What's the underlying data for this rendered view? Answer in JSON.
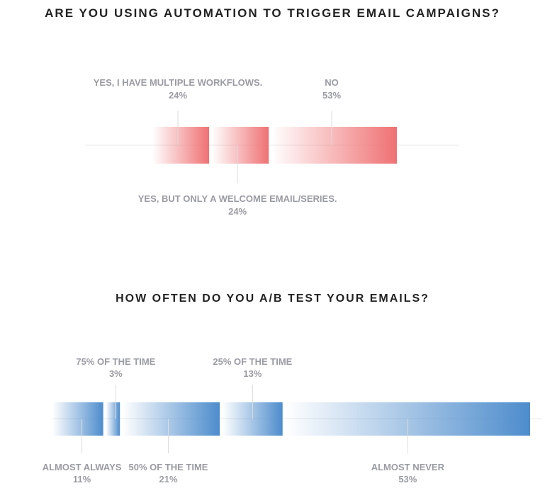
{
  "chart_data": [
    {
      "type": "bar",
      "title": "ARE YOU USING AUTOMATION TO TRIGGER EMAIL CAMPAIGNS?",
      "color": "#ef7173",
      "categories": [
        "YES, I HAVE MULTIPLE WORKFLOWS.",
        "YES, BUT ONLY A WELCOME EMAIL/SERIES.",
        "NO"
      ],
      "values": [
        24,
        24,
        53
      ],
      "value_labels": [
        "24%",
        "24%",
        "53%"
      ],
      "label_positions": [
        "top",
        "bottom",
        "top"
      ]
    },
    {
      "type": "bar",
      "title": "HOW OFTEN DO YOU A/B TEST YOUR EMAILS?",
      "color": "#4d8ccc",
      "categories": [
        "ALMOST ALWAYS",
        "75% OF THE TIME",
        "50% OF THE TIME",
        "25% OF THE TIME",
        "ALMOST NEVER"
      ],
      "values": [
        11,
        3,
        21,
        13,
        53
      ],
      "value_labels": [
        "11%",
        "3%",
        "21%",
        "13%",
        "53%"
      ],
      "label_positions": [
        "bottom",
        "top",
        "bottom",
        "top",
        "bottom"
      ]
    }
  ]
}
